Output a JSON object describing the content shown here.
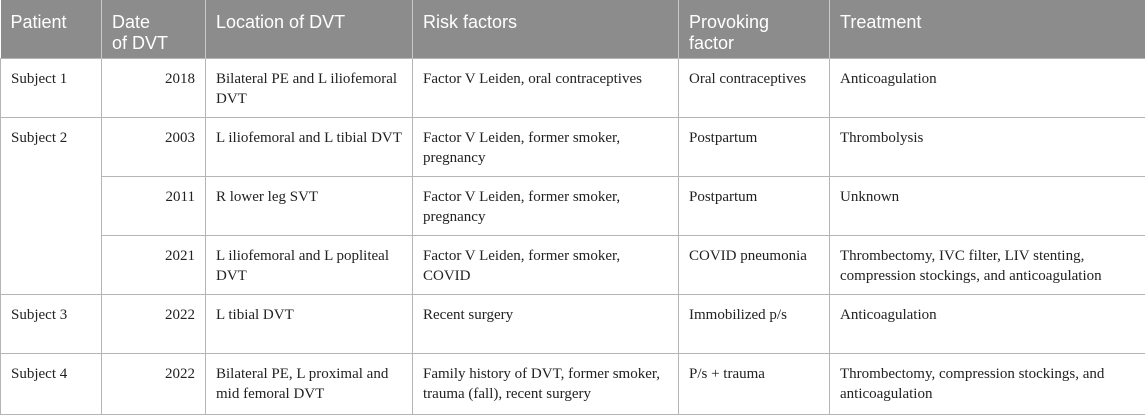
{
  "columns": [
    "Patient",
    "Date of DVT",
    "Location of DVT",
    "Risk factors",
    "Provoking factor",
    "Treatment"
  ],
  "rows": [
    {
      "patient": "Subject 1",
      "date": "2018",
      "location": "Bilateral PE and L iliofemoral DVT",
      "risk": "Factor V Leiden, oral contraceptives",
      "provoking": "Oral contraceptives",
      "treatment": "Anticoagulation"
    },
    {
      "patient": "Subject 2",
      "date": "2003",
      "location": "L iliofemoral and L tibial DVT",
      "risk": "Factor V Leiden, former smoker, pregnancy",
      "provoking": "Postpartum",
      "treatment": "Thrombolysis"
    },
    {
      "patient": "",
      "date": "2011",
      "location": "R lower leg SVT",
      "risk": "Factor V Leiden, former smoker, pregnancy",
      "provoking": "Postpartum",
      "treatment": "Unknown"
    },
    {
      "patient": "",
      "date": "2021",
      "location": "L iliofemoral and L popliteal DVT",
      "risk": "Factor V Leiden, former smoker, COVID",
      "provoking": "COVID pneumonia",
      "treatment": "Thrombectomy, IVC filter, LIV stenting, compression stockings, and anticoagulation"
    },
    {
      "patient": "Subject 3",
      "date": "2022",
      "location": "L tibial DVT",
      "risk": "Recent surgery",
      "provoking": "Immobilized p/s",
      "treatment": "Anticoagulation"
    },
    {
      "patient": "Subject 4",
      "date": "2022",
      "location": "Bilateral PE, L proximal and mid femoral DVT",
      "risk": "Family history of DVT, former smoker, trauma (fall), recent surgery",
      "provoking": "P/s + trauma",
      "treatment": "Thrombectomy, compression stockings, and anticoagulation"
    }
  ]
}
